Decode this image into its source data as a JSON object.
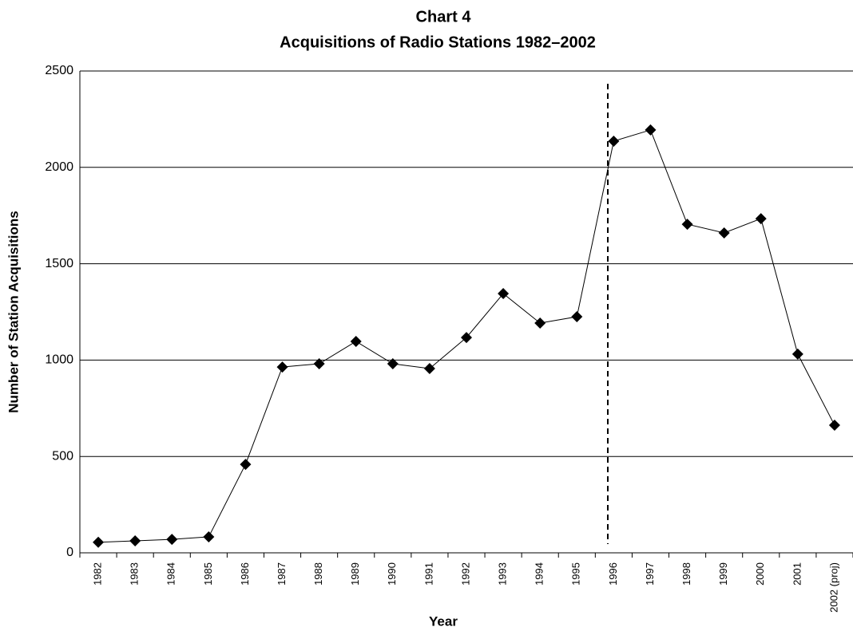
{
  "chart_data": {
    "type": "line",
    "title": "Chart 4",
    "subtitle": "Acquisitions of Radio Stations 1982–2002",
    "x_label": "Year",
    "y_label": "Number of Station Acquisitions",
    "categories": [
      "1982",
      "1983",
      "1984",
      "1985",
      "1986",
      "1987",
      "1988",
      "1989",
      "1990",
      "1991",
      "1992",
      "1993",
      "1994",
      "1995",
      "1996",
      "1997",
      "1998",
      "1999",
      "2000",
      "2001",
      "2002 (proj)"
    ],
    "values": [
      55,
      62,
      70,
      83,
      459,
      964,
      981,
      1097,
      981,
      956,
      1117,
      1345,
      1192,
      1225,
      2136,
      2194,
      1705,
      1660,
      1734,
      1031,
      662
    ],
    "color": "#000000",
    "ylim": [
      0,
      2500
    ],
    "yticks": [
      0,
      500,
      1000,
      1500,
      2000,
      2500
    ],
    "grid": true
  }
}
